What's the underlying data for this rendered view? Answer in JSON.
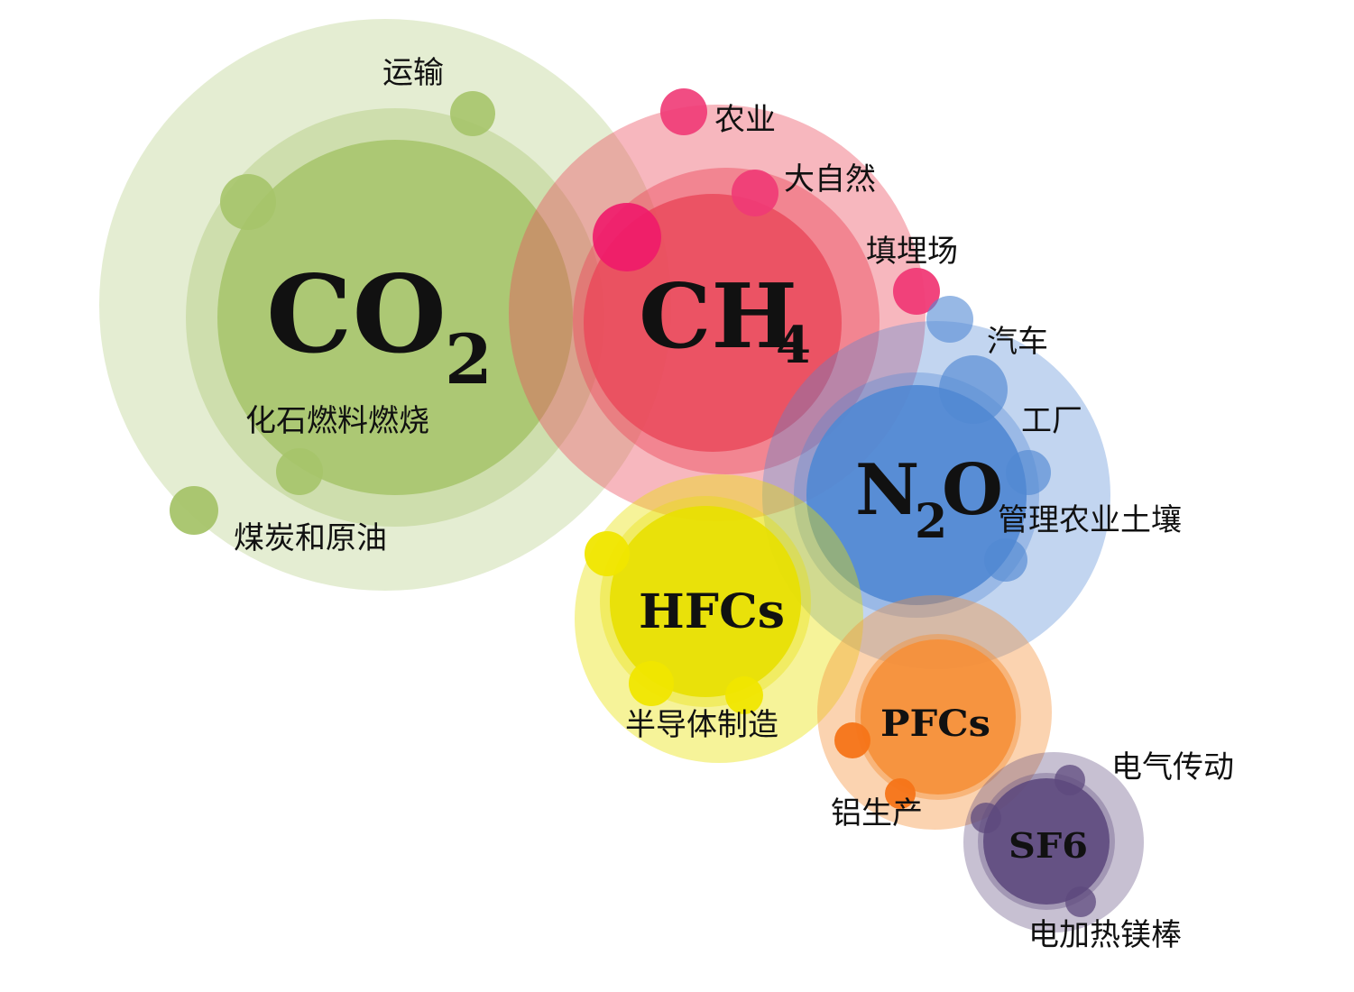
{
  "gases": [
    {
      "id": "co2",
      "formula": "CO",
      "subscript": "2",
      "color": "#A6C46A",
      "sources": [
        "运输",
        "化石燃料燃烧",
        "煤炭和原油"
      ]
    },
    {
      "id": "ch4",
      "formula": "CH",
      "subscript": "4",
      "color": "#EA4A5C",
      "sources": [
        "农业",
        "大自然",
        "填埋场"
      ]
    },
    {
      "id": "n2o",
      "formula_left": "N",
      "subscript": "2",
      "formula_right": "O",
      "color": "#5188D3",
      "sources": [
        "汽车",
        "工厂",
        "管理农业土壤"
      ]
    },
    {
      "id": "hfcs",
      "formula": "HFCs",
      "color": "#E8E000",
      "sources": [
        "半导体制造"
      ]
    },
    {
      "id": "pfcs",
      "formula": "PFCs",
      "color": "#F5903A",
      "sources": [
        "铝生产"
      ]
    },
    {
      "id": "sf6",
      "formula": "SF6",
      "color": "#5E4A7E",
      "sources": [
        "电气传动",
        "电加热镁棒"
      ]
    }
  ]
}
